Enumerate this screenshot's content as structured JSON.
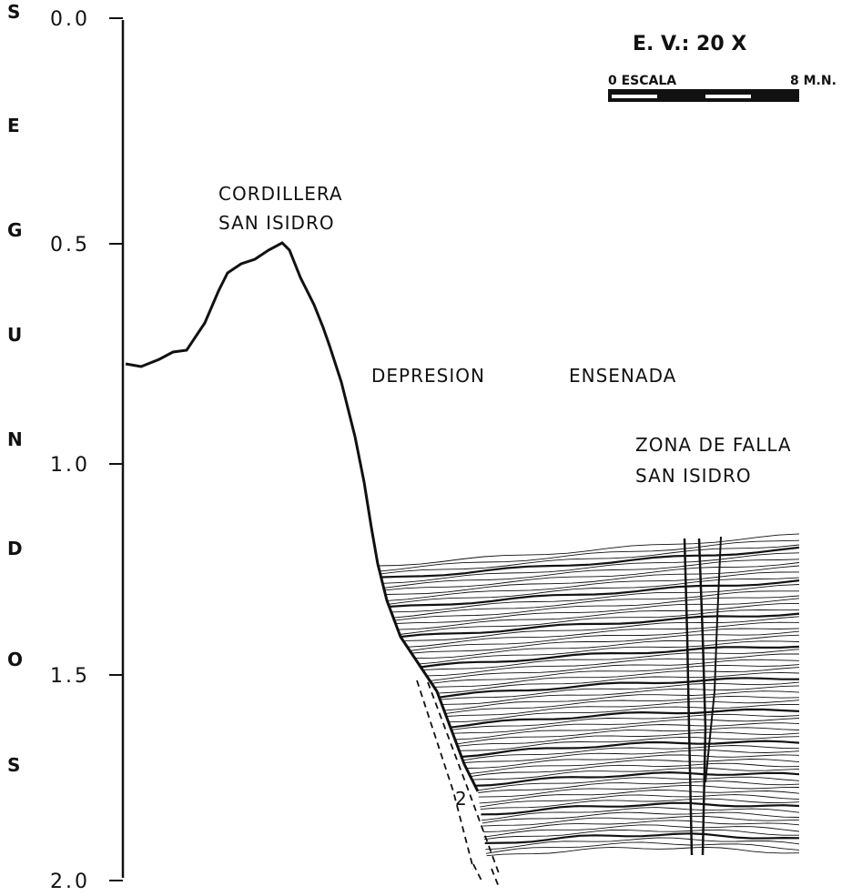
{
  "axis": {
    "ticks": [
      "0.0",
      "0.5",
      "1.0",
      "1.5",
      "2.0"
    ],
    "letters": [
      "S",
      "E",
      "G",
      "U",
      "N",
      "D",
      "O",
      "S"
    ]
  },
  "scale": {
    "exaggeration": "E. V.: 20 X",
    "start": "0 ESCALA",
    "end": "8 M.N."
  },
  "labels": {
    "ridge_1": "CORDILLERA",
    "ridge_2": "SAN ISIDRO",
    "depression_1": "DEPRESION",
    "depression_2": "ENSENADA",
    "fault_1": "ZONA DE FALLA",
    "fault_2": "SAN ISIDRO",
    "marker": "2"
  }
}
